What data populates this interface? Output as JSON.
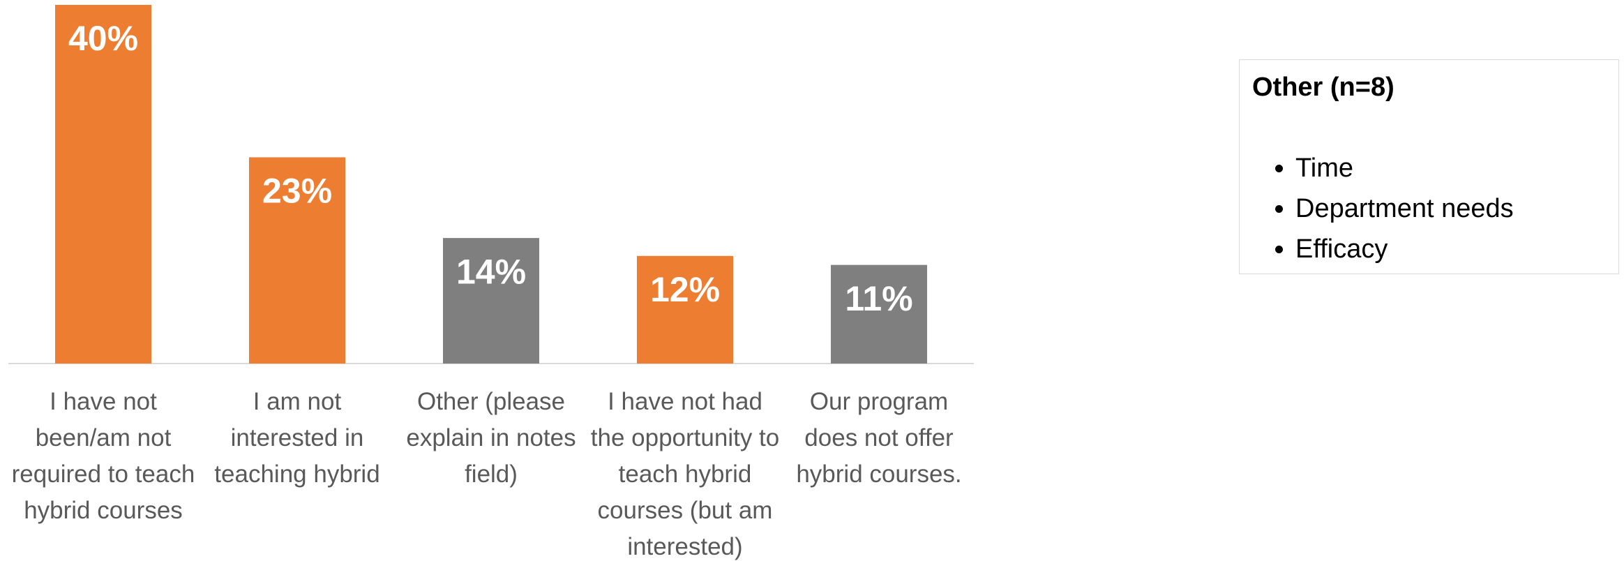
{
  "chart_data": {
    "type": "bar",
    "categories": [
      "I have not been/am not required to teach hybrid courses",
      "I am not interested in teaching hybrid",
      "Other (please explain in notes field)",
      "I have not had the opportunity to teach hybrid courses (but am interested)",
      "Our program does not offer hybrid courses."
    ],
    "values": [
      40,
      23,
      14,
      12,
      11
    ],
    "value_labels": [
      "40%",
      "23%",
      "14%",
      "12%",
      "11%"
    ],
    "colors": [
      "#ED7D31",
      "#ED7D31",
      "#7F7F7F",
      "#ED7D31",
      "#7F7F7F"
    ]
  },
  "text_box": {
    "title": "Other (n=8)",
    "items": [
      "Time",
      "Department needs",
      "Efficacy"
    ]
  }
}
